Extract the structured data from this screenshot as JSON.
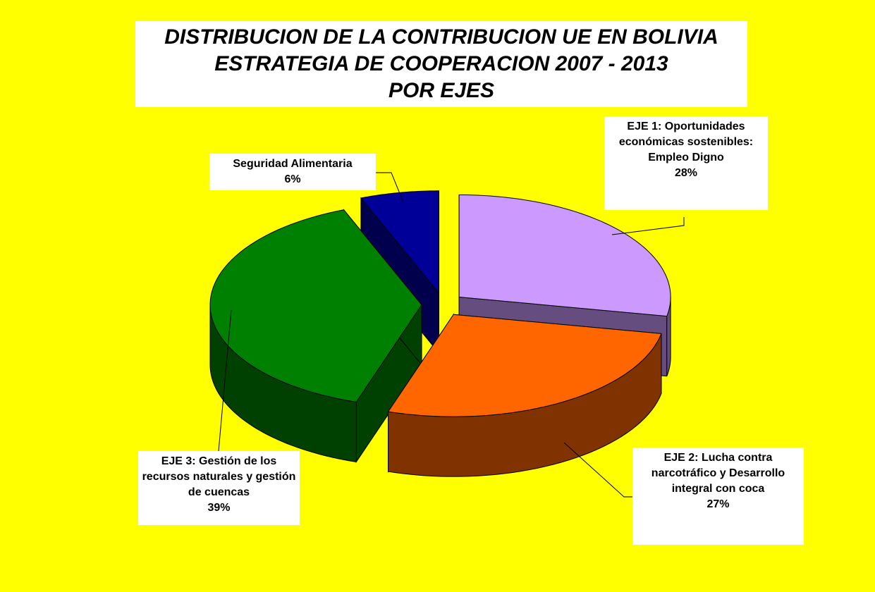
{
  "chart_data": {
    "type": "pie3d",
    "title": [
      "DISTRIBUCION DE LA CONTRIBUCION UE EN BOLIVIA",
      "ESTRATEGIA DE COOPERACION 2007 - 2013",
      "POR EJES"
    ],
    "categories": [
      "EJE 1: Oportunidades económicas sostenibles: Empleo Digno",
      "EJE 2: Lucha contra narcotráfico y Desarrollo integral con coca",
      "EJE 3: Gestión de los recursos naturales y gestión de cuencas",
      "Seguridad Alimentaria"
    ],
    "values": [
      28,
      27,
      39,
      6
    ],
    "value_labels": [
      "28%",
      "27%",
      "39%",
      "6%"
    ],
    "colors": [
      "#cc99ff",
      "#ff6600",
      "#008000",
      "#000099"
    ]
  }
}
